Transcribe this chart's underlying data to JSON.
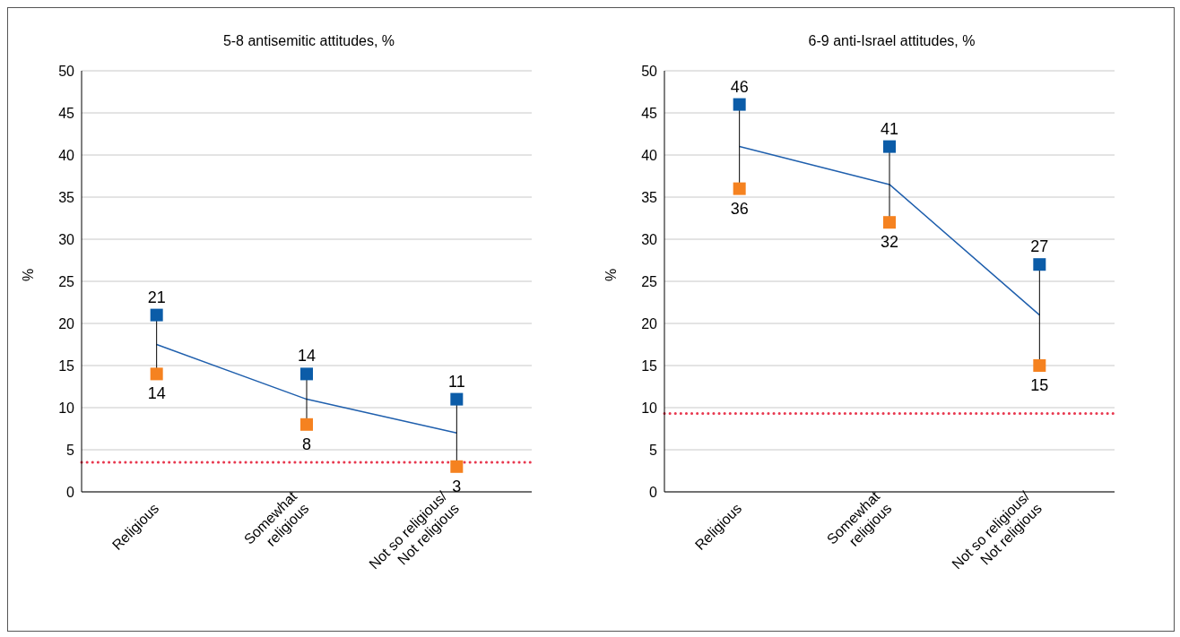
{
  "chart_data": [
    {
      "type": "line",
      "title": "5-8 antisemitic attitudes, %",
      "ylabel": "%",
      "categories": [
        "Religious",
        "Somewhat\nreligious",
        "Not so religious/\nNot religious"
      ],
      "series": [
        {
          "color": "#1f5fad",
          "values": [
            17.5,
            11,
            7
          ],
          "errors": [
            [
              3.5,
              3.5
            ],
            [
              3,
              3
            ],
            [
              4,
              4
            ]
          ],
          "marker": "none"
        },
        {
          "type": "scatter",
          "color": "#0b5ca8",
          "values": [
            21,
            14,
            11
          ],
          "value_labels": [
            "21",
            "14",
            "11"
          ],
          "marker": "square"
        },
        {
          "type": "scatter",
          "color": "#f58220",
          "values": [
            14,
            8,
            3
          ],
          "value_labels": [
            "14",
            "8",
            "3"
          ],
          "marker": "square"
        }
      ],
      "ylim": [
        0,
        50
      ],
      "yticks": [
        0,
        5,
        10,
        15,
        20,
        25,
        30,
        35,
        40,
        45,
        50
      ],
      "grid": "y",
      "ref_lines": [
        {
          "axis": "y",
          "value": 3.5,
          "color": "#e8384f",
          "line_style": "dotted"
        }
      ]
    },
    {
      "type": "line",
      "title": "6-9 anti-Israel attitudes, %",
      "ylabel": "%",
      "categories": [
        "Religious",
        "Somewhat\nreligious",
        "Not so religious/\nNot religious"
      ],
      "series": [
        {
          "color": "#1f5fad",
          "values": [
            41,
            36.5,
            21
          ],
          "errors": [
            [
              5,
              5
            ],
            [
              4.5,
              4.5
            ],
            [
              6,
              6
            ]
          ],
          "marker": "none"
        },
        {
          "type": "scatter",
          "color": "#0b5ca8",
          "values": [
            46,
            41,
            27
          ],
          "value_labels": [
            "46",
            "41",
            "27"
          ],
          "marker": "square"
        },
        {
          "type": "scatter",
          "color": "#f58220",
          "values": [
            36,
            32,
            15
          ],
          "value_labels": [
            "36",
            "32",
            "15"
          ],
          "marker": "square"
        }
      ],
      "ylim": [
        0,
        50
      ],
      "yticks": [
        0,
        5,
        10,
        15,
        20,
        25,
        30,
        35,
        40,
        45,
        50
      ],
      "grid": "y",
      "ref_lines": [
        {
          "axis": "y",
          "value": 9.3,
          "color": "#e8384f",
          "line_style": "dotted"
        }
      ]
    }
  ]
}
